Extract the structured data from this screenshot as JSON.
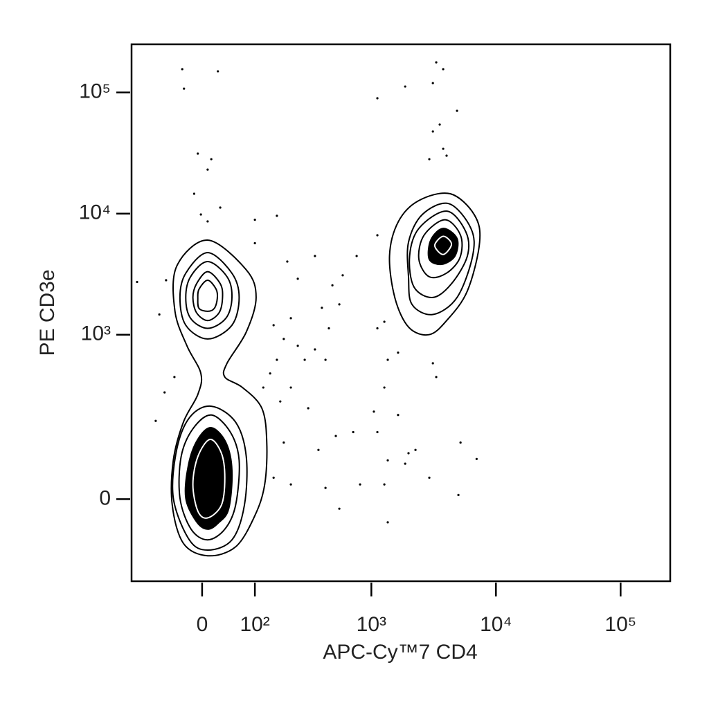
{
  "chart_data": {
    "type": "contour",
    "x_label": "APC-Cy™7 CD4",
    "y_label": "PE CD3e",
    "xscale": "biexponential",
    "yscale": "biexponential",
    "xlim": [
      -150,
      250000
    ],
    "ylim": [
      -200,
      250000
    ],
    "xticks": [
      0,
      {
        "value": 100,
        "label": "10²"
      },
      {
        "value": 1000,
        "label": "10³"
      },
      {
        "value": 10000,
        "label": "10⁴"
      },
      {
        "value": 100000,
        "label": "10⁵"
      }
    ],
    "yticks": [
      0,
      {
        "value": 1000,
        "label": "10³"
      },
      {
        "value": 10000,
        "label": "10⁴"
      },
      {
        "value": 100000,
        "label": "10⁵"
      }
    ],
    "contours": [
      {
        "color": "#000000",
        "x": [
          9,
          80,
          103,
          80,
          42,
          38,
          72,
          118,
          132,
          126,
          100,
          58,
          9,
          -31,
          -51,
          -49,
          -31,
          -7,
          -2,
          -25,
          -46,
          -43
        ],
        "y": [
          6050,
          3436,
          2033,
          1053,
          579,
          444,
          362,
          240,
          114,
          25,
          -28,
          -91,
          -114,
          -83,
          -10,
          71,
          180,
          316,
          476,
          809,
          1562,
          3670
        ]
      },
      {
        "color": "#000000",
        "x": [
          9,
          51,
          65,
          51,
          9,
          -27,
          -37,
          -27
        ],
        "y": [
          4770,
          3220,
          2033,
          1199,
          922,
          1199,
          2033,
          3220
        ]
      },
      {
        "color": "#000000",
        "x": [
          9,
          42,
          51,
          40,
          9,
          -19,
          -27,
          -19
        ],
        "y": [
          4025,
          3014,
          2033,
          1370,
          1130,
          1370,
          2033,
          3014
        ]
      },
      {
        "color": "#000000",
        "x": [
          9,
          30,
          34,
          28,
          9,
          -9,
          -15,
          -9
        ],
        "y": [
          3320,
          2640,
          2033,
          1520,
          1310,
          1520,
          2033,
          2640
        ]
      },
      {
        "color": "#000000",
        "x": [
          9,
          23,
          25,
          20,
          9,
          -5,
          -7,
          -5
        ],
        "y": [
          2820,
          2380,
          1990,
          1650,
          1562,
          1650,
          1990,
          2380
        ]
      },
      {
        "color": "#000000",
        "x": [
          15,
          58,
          80,
          76,
          51,
          9,
          -21,
          -49,
          -43,
          -20
        ],
        "y": [
          250,
          180,
          79,
          -10,
          -75,
          -99,
          -75,
          2,
          95,
          200
        ]
      },
      {
        "color": "#000000",
        "x": [
          15,
          48,
          65,
          58,
          38,
          9,
          -18,
          -37,
          -35,
          -15
        ],
        "y": [
          209,
          145,
          71,
          -10,
          -53,
          -75,
          -53,
          2,
          79,
          156
        ]
      },
      {
        "color": "#000000",
        "fill": "#000000",
        "x": [
          15,
          40,
          51,
          45,
          27,
          9,
          -9,
          -27,
          -22,
          -7
        ],
        "y": [
          160,
          114,
          50,
          -16,
          -41,
          -53,
          -39,
          2,
          64,
          123
        ]
      },
      {
        "color": "#ffffff",
        "x": [
          13,
          32,
          38,
          32,
          9,
          -7,
          -15,
          -7
        ],
        "y": [
          123,
          87,
          37,
          -10,
          -32,
          -20,
          25,
          79
        ]
      },
      {
        "color": "#000000",
        "x": [
          4300,
          6700,
          7400,
          5900,
          4000,
          2900,
          2000,
          1550,
          1400,
          1650,
          2400
        ],
        "y": [
          14600,
          9800,
          5800,
          2300,
          1300,
          1000,
          1150,
          2000,
          4500,
          8600,
          12800
        ]
      },
      {
        "color": "#000000",
        "x": [
          4190,
          6300,
          6500,
          4875,
          3120,
          2120,
          1990,
          1990,
          2570
        ],
        "y": [
          12100,
          7564,
          4470,
          2033,
          1470,
          1782,
          3014,
          5816,
          9840
        ]
      },
      {
        "color": "#000000",
        "x": [
          4020,
          5730,
          5900,
          4400,
          3120,
          2200,
          2030,
          2410
        ],
        "y": [
          10500,
          7100,
          4470,
          2640,
          2033,
          2480,
          4470,
          7560
        ]
      },
      {
        "color": "#000000",
        "x": [
          3900,
          5200,
          5150,
          4020,
          2920,
          2410,
          2650
        ],
        "y": [
          8900,
          6635,
          4350,
          3230,
          3014,
          4200,
          6635
        ]
      },
      {
        "color": "#000000",
        "fill": "#000000",
        "x": [
          3775,
          4875,
          4690,
          3680,
          2920,
          3000
        ],
        "y": [
          7560,
          6230,
          4470,
          3820,
          4200,
          6050
        ]
      },
      {
        "color": "#ffffff",
        "x": [
          3775,
          4400,
          3775,
          3230
        ],
        "y": [
          6500,
          5600,
          4600,
          5460
        ]
      }
    ],
    "points": {
      "color": "#000000",
      "x": [
        -33,
        -30,
        26,
        -7,
        15,
        9,
        -13,
        -2,
        9,
        30,
        164,
        100,
        100,
        -63,
        -133,
        -77,
        -47,
        -66,
        -85,
        203,
        348,
        250,
        587,
        484,
        551,
        397,
        218,
        153,
        189,
        250,
        348,
        286,
        164,
        142,
        218,
        122,
        176,
        306,
        516,
        372,
        189,
        153,
        218,
        425,
        811,
        551,
        714,
        1048,
        1118,
        1272,
        1355,
        1640,
        1640,
        1989,
        1355,
        1272,
        1355,
        1870,
        2262,
        2921,
        5200,
        7000,
        5000,
        3320,
        3120,
        3320,
        3120,
        3775,
        1870,
        1118,
        3540,
        3120,
        3775,
        4875,
        2921,
        4020,
        761,
        1118,
        1272,
        1118,
        453,
        425
      ],
      "y": [
        155800,
        107600,
        149600,
        31300,
        28160,
        23100,
        14600,
        9840,
        8633,
        11229,
        9600,
        8900,
        5700,
        2820,
        2730,
        1470,
        444,
        329,
        185,
        4025,
        4470,
        2900,
        3100,
        2560,
        1782,
        1670,
        1370,
        1199,
        922,
        809,
        755,
        619,
        619,
        476,
        362,
        362,
        275,
        240,
        133,
        95,
        114,
        37,
        25,
        19,
        25,
        -16,
        145,
        224,
        145,
        362,
        619,
        710,
        209,
        87,
        71,
        25,
        -40,
        64,
        95,
        37,
        114,
        74,
        7,
        444,
        579,
        177300,
        119600,
        155800,
        112000,
        89600,
        54400,
        47700,
        34300,
        70600,
        28160,
        30100,
        4470,
        6635,
        1280,
        1130,
        1130,
        619
      ]
    }
  }
}
